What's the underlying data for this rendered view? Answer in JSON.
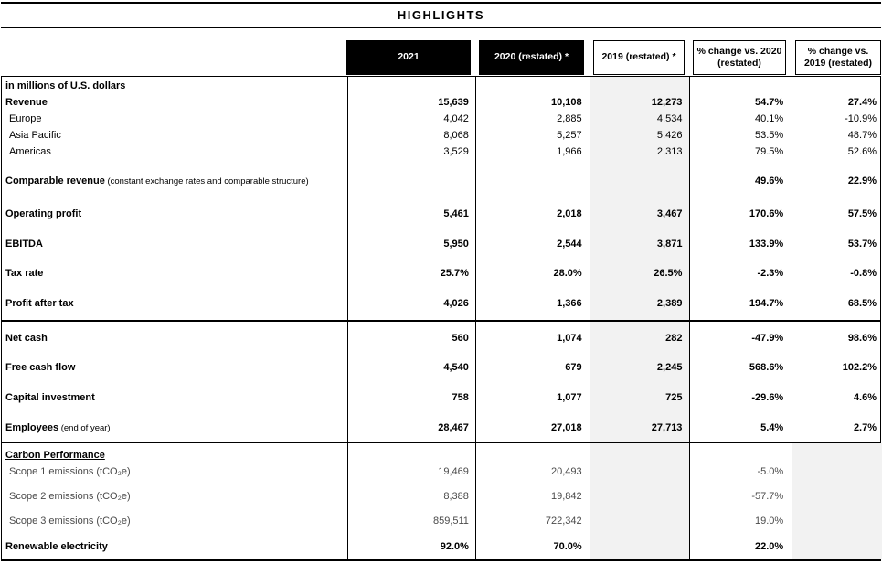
{
  "title": "HIGHLIGHTS",
  "colors": {
    "header_bg": "#000000",
    "band": "#d9d9d9",
    "column_2019_bg": "#f2f2f2"
  },
  "header": {
    "columns": [
      "2021",
      "2020 (restated) *",
      "2019 (restated) *",
      "% change vs. 2020\n(restated)",
      "% change vs.\n2019 (restated)"
    ]
  },
  "sections": [
    {
      "name": "profit-and-loss",
      "rows": [
        {
          "kind": "unit",
          "label": "in millions of U.S. dollars",
          "note": "",
          "gap": 0,
          "h": 19,
          "values": [
            "",
            "",
            "",
            "",
            ""
          ]
        },
        {
          "kind": "main",
          "label": "Revenue",
          "note": "",
          "gap": 0,
          "h": 18,
          "values": [
            "15,639",
            "10,108",
            "12,273",
            "54.7%",
            "27.4%"
          ]
        },
        {
          "kind": "sub",
          "label": "Europe",
          "note": "",
          "gap": 0,
          "h": 18,
          "values": [
            "4,042",
            "2,885",
            "4,534",
            "40.1%",
            "-10.9%"
          ]
        },
        {
          "kind": "sub",
          "label": "Asia Pacific",
          "note": "",
          "gap": 0,
          "h": 18,
          "values": [
            "8,068",
            "5,257",
            "5,426",
            "53.5%",
            "48.7%"
          ]
        },
        {
          "kind": "sub",
          "label": "Americas",
          "note": "",
          "gap": 0,
          "h": 18,
          "values": [
            "3,529",
            "1,966",
            "2,313",
            "79.5%",
            "52.6%"
          ]
        },
        {
          "kind": "band",
          "label": "Comparable revenue",
          "note": "(constant exchange rates and comparable structure)",
          "gap": 13,
          "h": 19,
          "values": [
            "",
            "",
            "",
            "49.6%",
            "22.9%"
          ]
        },
        {
          "kind": "main",
          "label": "Operating profit",
          "note": "",
          "gap": 17,
          "h": 19,
          "values": [
            "5,461",
            "2,018",
            "3,467",
            "170.6%",
            "57.5%"
          ]
        },
        {
          "kind": "main",
          "label": "EBITDA",
          "note": "",
          "gap": 14,
          "h": 19,
          "values": [
            "5,950",
            "2,544",
            "3,871",
            "133.9%",
            "53.7%"
          ]
        },
        {
          "kind": "main",
          "label": "Tax rate",
          "note": "",
          "gap": 13,
          "h": 19,
          "values": [
            "25.7%",
            "28.0%",
            "26.5%",
            "-2.3%",
            "-0.8%"
          ]
        },
        {
          "kind": "main",
          "label": "Profit after tax",
          "note": "",
          "gap": 14,
          "h": 19,
          "values": [
            "4,026",
            "1,366",
            "2,389",
            "194.7%",
            "68.5%"
          ]
        }
      ]
    },
    {
      "name": "cash-and-people",
      "rows": [
        {
          "kind": "main",
          "label": "Net cash",
          "note": "",
          "gap": 8,
          "h": 19,
          "values": [
            "560",
            "1,074",
            "282",
            "-47.9%",
            "98.6%"
          ]
        },
        {
          "kind": "main",
          "label": "Free cash flow",
          "note": "",
          "gap": 13,
          "h": 19,
          "values": [
            "4,540",
            "679",
            "2,245",
            "568.6%",
            "102.2%"
          ]
        },
        {
          "kind": "main",
          "label": "Capital investment",
          "note": "",
          "gap": 14,
          "h": 19,
          "values": [
            "758",
            "1,077",
            "725",
            "-29.6%",
            "4.6%"
          ]
        },
        {
          "kind": "main",
          "label": "Employees",
          "note": "(end of year)",
          "gap": 14,
          "h": 19,
          "values": [
            "28,467",
            "27,018",
            "27,713",
            "5.4%",
            "2.7%"
          ]
        }
      ]
    },
    {
      "name": "carbon-performance",
      "rows": [
        {
          "kind": "head",
          "label": "Carbon Performance",
          "note": "",
          "gap": 4,
          "h": 18,
          "values": [
            "",
            "",
            "",
            "",
            ""
          ]
        },
        {
          "kind": "scope",
          "label": "Scope 1 emissions (tCO₂e)",
          "note": "",
          "gap": 0,
          "h": 18,
          "values": [
            "19,469",
            "20,493",
            "",
            "-5.0%",
            ""
          ]
        },
        {
          "kind": "scope",
          "label": "Scope 2 emissions (tCO₂e)",
          "note": "",
          "gap": 9,
          "h": 18,
          "values": [
            "8,388",
            "19,842",
            "",
            "-57.7%",
            ""
          ]
        },
        {
          "kind": "scope",
          "label": "Scope 3 emissions (tCO₂e)",
          "note": "",
          "gap": 9,
          "h": 18,
          "values": [
            "859,511",
            "722,342",
            "",
            "19.0%",
            ""
          ]
        },
        {
          "kind": "main",
          "label": "Renewable electricity",
          "note": "",
          "gap": 10,
          "h": 18,
          "values": [
            "92.0%",
            "70.0%",
            "",
            "22.0%",
            ""
          ]
        }
      ]
    }
  ]
}
